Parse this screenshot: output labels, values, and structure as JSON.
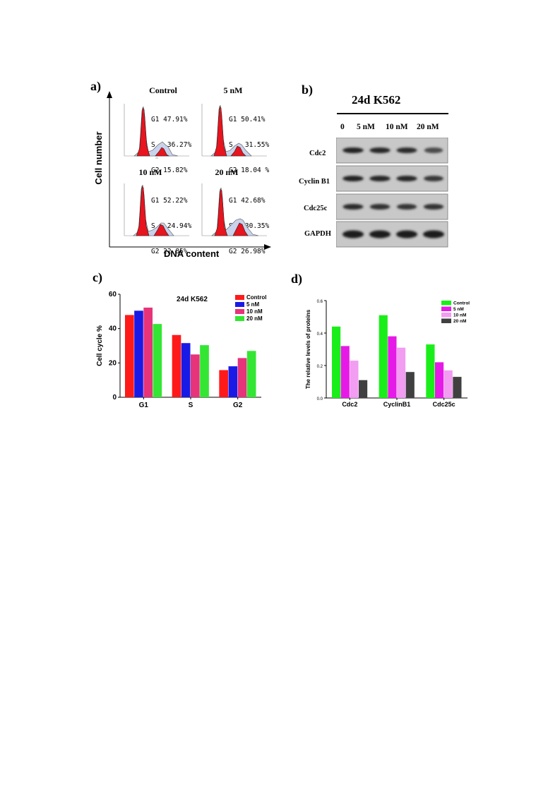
{
  "panel_a": {
    "letter": "a)",
    "y_label": "Cell number",
    "x_label": "DNA content",
    "histograms": [
      {
        "title": "Control",
        "g1": "G1 47.91%",
        "s": "S   36.27%",
        "g2": "G2 15.82%"
      },
      {
        "title": "5 nM",
        "g1": "G1 50.41%",
        "s": "S   31.55%",
        "g2": "G2 18.04 %"
      },
      {
        "title": "10 nM",
        "g1": "G1 52.22%",
        "s": "S   24.94%",
        "g2": "G2 22.85%"
      },
      {
        "title": "20 nM",
        "g1": "G1 42.68%",
        "s": "S   30.35%",
        "g2": "G2 26.98%"
      }
    ]
  },
  "panel_b": {
    "letter": "b)",
    "title": "24d K562",
    "lanes": [
      "0",
      "5 nM",
      "10 nM",
      "20 nM"
    ],
    "blots": [
      "Cdc2",
      "Cyclin B1",
      "Cdc25c",
      "GAPDH"
    ],
    "band_intensity": [
      [
        0.95,
        0.92,
        0.88,
        0.55
      ],
      [
        0.95,
        0.93,
        0.92,
        0.75
      ],
      [
        0.88,
        0.82,
        0.78,
        0.8
      ],
      [
        1.0,
        1.0,
        1.0,
        1.0
      ]
    ]
  },
  "chart_data": [
    {
      "panel": "c)",
      "type": "bar",
      "title": "24d K562",
      "ylabel": "Cell cycle %",
      "xlabel": "",
      "categories": [
        "G1",
        "S",
        "G2"
      ],
      "ylim": [
        0,
        60
      ],
      "yticks": [
        0,
        20,
        40,
        60
      ],
      "legend_position": "top-right",
      "series": [
        {
          "name": "Control",
          "color": "#ff1a1a",
          "values": [
            47.91,
            36.27,
            15.82
          ]
        },
        {
          "name": "5 nM",
          "color": "#1a1ae6",
          "values": [
            50.41,
            31.55,
            18.04
          ]
        },
        {
          "name": "10 nM",
          "color": "#e6337a",
          "values": [
            52.22,
            24.94,
            22.85
          ]
        },
        {
          "name": "20 nM",
          "color": "#33e633",
          "values": [
            42.68,
            30.35,
            26.98
          ]
        }
      ]
    },
    {
      "panel": "d)",
      "type": "bar",
      "title": "",
      "ylabel": "The relative levels of proteins",
      "xlabel": "",
      "categories": [
        "Cdc2",
        "CyclinB1",
        "Cdc25c"
      ],
      "ylim": [
        0,
        0.6
      ],
      "yticks": [
        0.0,
        0.2,
        0.4,
        0.6
      ],
      "legend_position": "top-right",
      "series": [
        {
          "name": "Control",
          "color": "#1aee1a",
          "values": [
            0.44,
            0.51,
            0.33
          ]
        },
        {
          "name": "5 nM",
          "color": "#e61ae6",
          "values": [
            0.32,
            0.38,
            0.22
          ]
        },
        {
          "name": "10 nM",
          "color": "#f29cf2",
          "values": [
            0.23,
            0.31,
            0.17
          ]
        },
        {
          "name": "20 nM",
          "color": "#404040",
          "values": [
            0.11,
            0.16,
            0.13
          ]
        }
      ]
    }
  ]
}
